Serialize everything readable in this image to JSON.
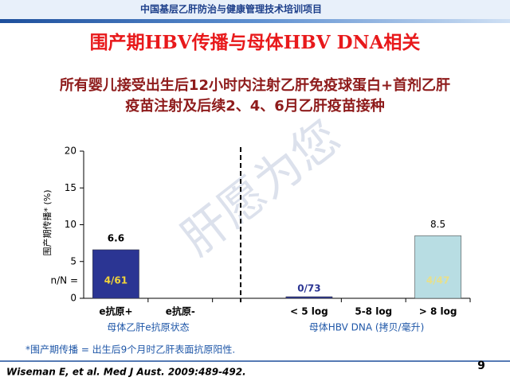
{
  "header": "中国基层乙肝防治与健康管理技术培训项目",
  "watermark": "肝愿为您",
  "chart_data": {
    "type": "bar",
    "title": "围产期HBV传播与母体HBV DNA相关",
    "subtitle": [
      "所有婴儿接受出生后12小时内注射乙肝免疫球蛋白+首剂乙肝",
      "疫苗注射及后续2、4、6月乙肝疫苗接种"
    ],
    "y_label": "围产期传播* (%)",
    "categories": [
      "e抗原+",
      "e抗原-",
      null,
      "< 5 log",
      "5-8 log",
      "> 8 log"
    ],
    "values": [
      6.6,
      null,
      null,
      0,
      null,
      8.5
    ],
    "value_labels": [
      "6.6",
      null,
      null,
      null,
      null,
      "8.5"
    ],
    "counts_label": "n/N =",
    "counts": [
      "4/61",
      null,
      null,
      "0/73",
      null,
      "4/47"
    ],
    "colors": [
      "#2b3593",
      null,
      null,
      "#2b3593",
      null,
      "#b8dde3"
    ],
    "group_labels": [
      "母体乙肝e抗原状态",
      "母体HBV DNA (拷贝/毫升)"
    ],
    "ylim": [
      0,
      20
    ],
    "yticks": [
      0,
      5,
      10,
      15,
      20
    ],
    "grid": false,
    "footnote": "*围产期传播 = 出生后9个月时乙肝表面抗原阳性.",
    "citation": "Wiseman E, et al. Med J Aust. 2009:489-492.",
    "page_number": "9"
  }
}
